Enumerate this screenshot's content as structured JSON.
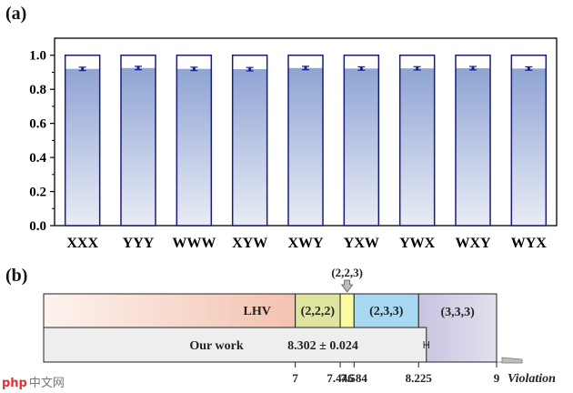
{
  "panel_a_label": "(a)",
  "panel_b_label": "(b)",
  "watermark": {
    "logo": "php",
    "text": "中文网"
  },
  "chart_data": [
    {
      "type": "bar",
      "panel": "(a)",
      "categories": [
        "XXX",
        "YYY",
        "WWW",
        "XYW",
        "XWY",
        "YXW",
        "YWX",
        "WXY",
        "WYX"
      ],
      "values": [
        0.92,
        0.925,
        0.92,
        0.918,
        0.925,
        0.922,
        0.923,
        0.924,
        0.922
      ],
      "errors": [
        0.01,
        0.01,
        0.01,
        0.01,
        0.01,
        0.01,
        0.01,
        0.01,
        0.01
      ],
      "outline_values": [
        1.0,
        1.0,
        1.0,
        1.0,
        1.0,
        1.0,
        1.0,
        1.0,
        1.0
      ],
      "ylim": [
        0,
        1.1
      ],
      "yticks": [
        "0.0",
        "0.2",
        "0.4",
        "0.6",
        "0.8",
        "1.0"
      ],
      "ytick_values": [
        0,
        0.2,
        0.4,
        0.6,
        0.8,
        1.0
      ],
      "xlabel": "",
      "ylabel": "",
      "colors": {
        "bar_top": "#8fa4d3",
        "bar_bottom": "#e9ecf6",
        "outline": "#1a1a7a",
        "error": "#1a1a9a"
      }
    },
    {
      "type": "range-bar",
      "panel": "(b)",
      "xlim": [
        4.5,
        9
      ],
      "axis_ticks": [
        7,
        7.446,
        7.584,
        8.225,
        9
      ],
      "axis_tick_labels": [
        "7",
        "7.446",
        "7.584",
        "8.225",
        "9"
      ],
      "axis_label": "Violation",
      "segments": [
        {
          "label": "LHV",
          "start": 4.5,
          "end": 7,
          "color": "#f3c2b0",
          "color_from": "#fdf3ee"
        },
        {
          "label": "(2,2,2)",
          "start": 7,
          "end": 7.446,
          "color": "#dfe5a0"
        },
        {
          "label": "",
          "start": 7.446,
          "end": 7.584,
          "color": "#fafaa0"
        },
        {
          "label": "(2,3,3)",
          "start": 7.584,
          "end": 8.225,
          "color": "#a9d9f2"
        },
        {
          "label": "(3,3,3)",
          "start": 8.225,
          "end": 9,
          "color": "#d2cde4"
        }
      ],
      "callout": {
        "label": "(2,2,3)",
        "at": 7.515
      },
      "result": {
        "label": "Our work",
        "value": 8.302,
        "error": 0.024,
        "text": "8.302 ± 0.024",
        "color": "#eeeeee"
      }
    }
  ]
}
